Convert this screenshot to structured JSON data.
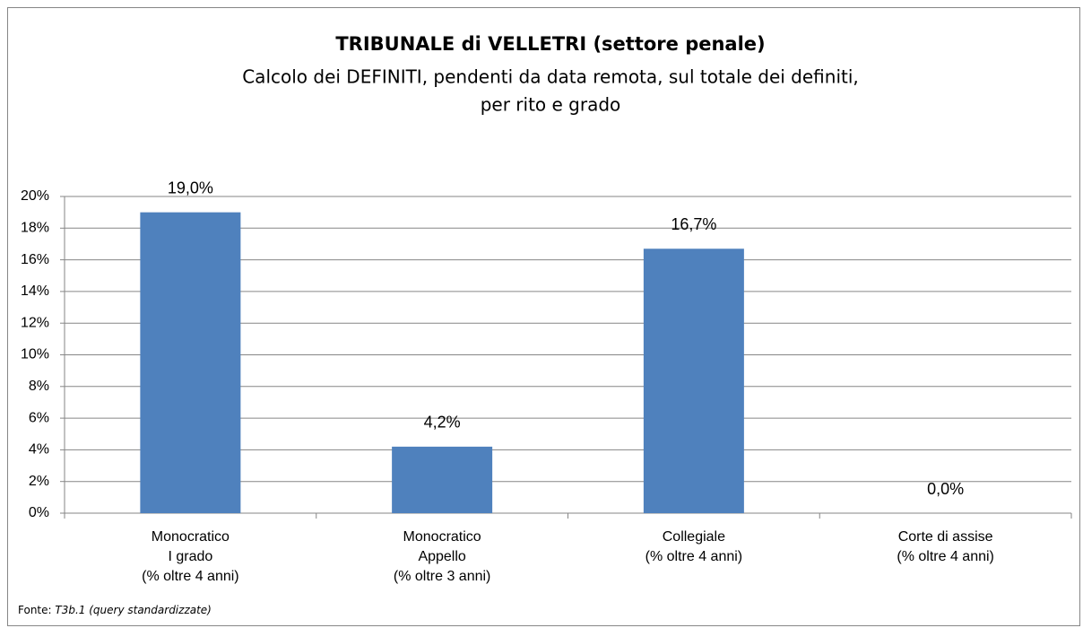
{
  "chart_data": {
    "type": "bar",
    "title": "TRIBUNALE di VELLETRI (settore penale)",
    "subtitle": [
      "Calcolo dei DEFINITI, pendenti da data remota, sul totale dei definiti,",
      "per rito e grado"
    ],
    "categories": [
      [
        "Monocratico",
        "I grado",
        "(% oltre 4 anni)"
      ],
      [
        "Monocratico",
        "Appello",
        "(% oltre 3 anni)"
      ],
      [
        "Collegiale",
        "(% oltre 4 anni)"
      ],
      [
        "Corte di assise",
        "(% oltre 4 anni)"
      ]
    ],
    "values": [
      19.0,
      4.2,
      16.7,
      0.0
    ],
    "value_labels": [
      "19,0%",
      "4,2%",
      "16,7%",
      "0,0%"
    ],
    "color": "#4f81bd",
    "ylim": [
      0,
      20
    ],
    "yticks": [
      {
        "value": 0,
        "label": "0%"
      },
      {
        "value": 2,
        "label": "2%"
      },
      {
        "value": 4,
        "label": "4%"
      },
      {
        "value": 6,
        "label": "6%"
      },
      {
        "value": 8,
        "label": "8%"
      },
      {
        "value": 10,
        "label": "10%"
      },
      {
        "value": 12,
        "label": "12%"
      },
      {
        "value": 14,
        "label": "14%"
      },
      {
        "value": 16,
        "label": "16%"
      },
      {
        "value": 18,
        "label": "18%"
      },
      {
        "value": 20,
        "label": "20%"
      }
    ],
    "grid": true,
    "source": {
      "label": "Fonte:",
      "text": "T3b.1 (query standardizzate)"
    }
  }
}
